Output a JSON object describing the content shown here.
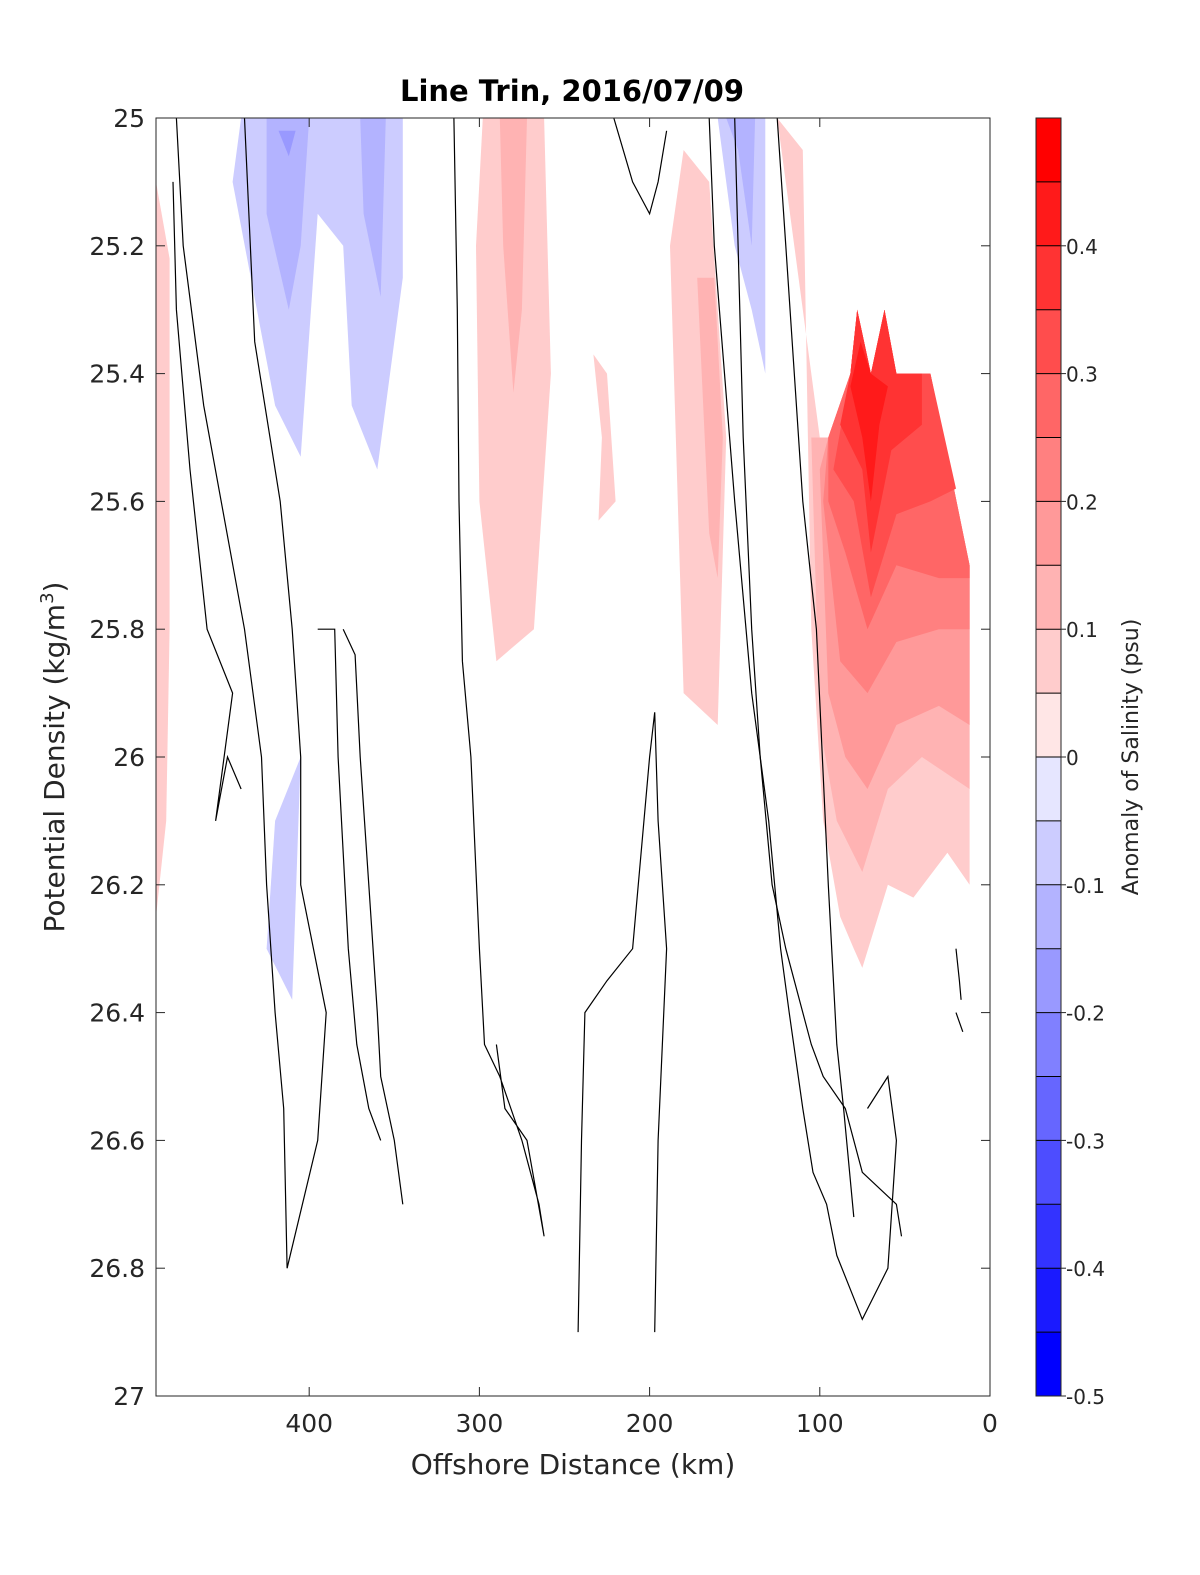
{
  "chart_data": {
    "type": "filled-contour",
    "title": "Line Trin, 2016/07/09",
    "xlabel": "Offshore Distance (km)",
    "ylabel": "Potential Density (kg/m",
    "ylabel_sup": "3",
    "ylabel_end": ")",
    "xlim": [
      490,
      0
    ],
    "ylim": [
      25,
      27
    ],
    "x_ticks": [
      400,
      300,
      200,
      100,
      0
    ],
    "y_ticks": [
      "25",
      "25.2",
      "25.4",
      "25.6",
      "25.8",
      "26",
      "26.2",
      "26.4",
      "26.6",
      "26.8",
      "27"
    ],
    "colorbar": {
      "label": "Anomaly of Salinity (psu)",
      "range": [
        -0.5,
        0.5
      ],
      "tick_labels": [
        "-0.5",
        "-0.4",
        "-0.3",
        "-0.2",
        "-0.1",
        "0",
        "0.1",
        "0.2",
        "0.3",
        "0.4"
      ],
      "levels": [
        -0.5,
        -0.45,
        -0.4,
        -0.35,
        -0.3,
        -0.25,
        -0.2,
        -0.15,
        -0.1,
        -0.05,
        0.05,
        0.1,
        0.15,
        0.2,
        0.25,
        0.3,
        0.35,
        0.4,
        0.45,
        0.5
      ],
      "colors": [
        "#0000ff",
        "#1a1aff",
        "#3333ff",
        "#4d4dff",
        "#6666ff",
        "#8080ff",
        "#9999ff",
        "#b3b3ff",
        "#ccccff",
        "#e6e6ff",
        "#ffffff",
        "#ffe6e6",
        "#ffcccc",
        "#ffb3b3",
        "#ff9999",
        "#ff8080",
        "#ff6666",
        "#ff4d4d",
        "#ff3333",
        "#ff1a1a",
        "#ff0000"
      ]
    },
    "filled_regions": [
      {
        "level": 0.1,
        "points": [
          [
            490,
            25.1
          ],
          [
            482,
            25.22
          ],
          [
            482,
            25.8
          ],
          [
            484,
            26.1
          ],
          [
            490,
            26.25
          ]
        ]
      },
      {
        "level": -0.1,
        "points": [
          [
            440,
            25.0
          ],
          [
            345,
            25.0
          ],
          [
            345,
            25.25
          ],
          [
            360,
            25.55
          ],
          [
            375,
            25.45
          ],
          [
            380,
            25.2
          ],
          [
            395,
            25.15
          ],
          [
            405,
            25.53
          ],
          [
            420,
            25.45
          ],
          [
            445,
            25.1
          ]
        ]
      },
      {
        "level": -0.15,
        "points": [
          [
            425,
            25.0
          ],
          [
            400,
            25.0
          ],
          [
            405,
            25.2
          ],
          [
            412,
            25.3
          ],
          [
            425,
            25.15
          ]
        ]
      },
      {
        "level": -0.15,
        "points": [
          [
            370,
            25.0
          ],
          [
            355,
            25.0
          ],
          [
            358,
            25.28
          ],
          [
            368,
            25.15
          ]
        ]
      },
      {
        "level": -0.2,
        "points": [
          [
            418,
            25.02
          ],
          [
            408,
            25.02
          ],
          [
            412,
            25.06
          ]
        ]
      },
      {
        "level": -0.1,
        "points": [
          [
            405,
            26.0
          ],
          [
            410,
            26.38
          ],
          [
            425,
            26.3
          ],
          [
            420,
            26.1
          ]
        ]
      },
      {
        "level": 0.1,
        "points": [
          [
            298,
            25.0
          ],
          [
            262,
            25.0
          ],
          [
            258,
            25.4
          ],
          [
            268,
            25.8
          ],
          [
            290,
            25.85
          ],
          [
            300,
            25.6
          ],
          [
            302,
            25.2
          ]
        ]
      },
      {
        "level": 0.15,
        "points": [
          [
            288,
            25.0
          ],
          [
            272,
            25.0
          ],
          [
            275,
            25.3
          ],
          [
            280,
            25.43
          ],
          [
            286,
            25.2
          ]
        ]
      },
      {
        "level": 0.1,
        "points": [
          [
            233,
            25.37
          ],
          [
            228,
            25.5
          ],
          [
            230,
            25.63
          ],
          [
            220,
            25.6
          ],
          [
            225,
            25.4
          ]
        ]
      },
      {
        "level": 0.1,
        "points": [
          [
            188,
            25.2
          ],
          [
            180,
            25.9
          ],
          [
            160,
            25.95
          ],
          [
            155,
            25.5
          ],
          [
            165,
            25.1
          ],
          [
            180,
            25.05
          ]
        ]
      },
      {
        "level": 0.15,
        "points": [
          [
            172,
            25.25
          ],
          [
            165,
            25.65
          ],
          [
            160,
            25.72
          ],
          [
            157,
            25.5
          ],
          [
            162,
            25.25
          ]
        ]
      },
      {
        "level": -0.1,
        "points": [
          [
            160,
            25.0
          ],
          [
            132,
            25.0
          ],
          [
            132,
            25.4
          ],
          [
            140,
            25.3
          ],
          [
            150,
            25.2
          ]
        ]
      },
      {
        "level": -0.15,
        "points": [
          [
            155,
            25.0
          ],
          [
            138,
            25.0
          ],
          [
            140,
            25.2
          ],
          [
            148,
            25.05
          ]
        ]
      },
      {
        "level": 0.1,
        "points": [
          [
            125,
            25.0
          ],
          [
            110,
            25.05
          ],
          [
            105,
            25.8
          ],
          [
            98,
            26.1
          ],
          [
            88,
            26.25
          ],
          [
            80,
            26.3
          ],
          [
            75,
            26.33
          ],
          [
            60,
            26.2
          ],
          [
            45,
            26.22
          ],
          [
            25,
            26.15
          ],
          [
            12,
            26.2
          ],
          [
            12,
            25.7
          ],
          [
            35,
            25.4
          ],
          [
            55,
            25.4
          ],
          [
            62,
            25.3
          ],
          [
            70,
            25.4
          ],
          [
            78,
            25.3
          ],
          [
            82,
            25.4
          ],
          [
            95,
            25.5
          ],
          [
            100,
            25.5
          ],
          [
            110,
            25.3
          ]
        ]
      },
      {
        "level": 0.15,
        "points": [
          [
            105,
            25.5
          ],
          [
            100,
            25.95
          ],
          [
            90,
            26.1
          ],
          [
            75,
            26.18
          ],
          [
            60,
            26.05
          ],
          [
            40,
            26.0
          ],
          [
            12,
            26.05
          ],
          [
            12,
            25.7
          ],
          [
            35,
            25.4
          ],
          [
            55,
            25.4
          ],
          [
            62,
            25.3
          ],
          [
            70,
            25.4
          ],
          [
            78,
            25.3
          ],
          [
            82,
            25.4
          ],
          [
            95,
            25.5
          ]
        ]
      },
      {
        "level": 0.2,
        "points": [
          [
            100,
            25.55
          ],
          [
            95,
            25.9
          ],
          [
            85,
            26.0
          ],
          [
            72,
            26.05
          ],
          [
            55,
            25.95
          ],
          [
            30,
            25.92
          ],
          [
            12,
            25.95
          ],
          [
            12,
            25.7
          ],
          [
            35,
            25.4
          ],
          [
            55,
            25.4
          ],
          [
            62,
            25.3
          ],
          [
            70,
            25.4
          ],
          [
            78,
            25.3
          ],
          [
            82,
            25.4
          ],
          [
            95,
            25.5
          ]
        ]
      },
      {
        "level": 0.25,
        "points": [
          [
            98,
            25.6
          ],
          [
            88,
            25.85
          ],
          [
            72,
            25.9
          ],
          [
            55,
            25.82
          ],
          [
            30,
            25.8
          ],
          [
            12,
            25.8
          ],
          [
            12,
            25.7
          ],
          [
            35,
            25.4
          ],
          [
            55,
            25.4
          ],
          [
            62,
            25.3
          ],
          [
            70,
            25.4
          ],
          [
            78,
            25.3
          ],
          [
            82,
            25.4
          ],
          [
            95,
            25.5
          ]
        ]
      },
      {
        "level": 0.3,
        "points": [
          [
            95,
            25.6
          ],
          [
            85,
            25.68
          ],
          [
            72,
            25.8
          ],
          [
            55,
            25.7
          ],
          [
            30,
            25.72
          ],
          [
            12,
            25.72
          ],
          [
            12,
            25.7
          ],
          [
            35,
            25.4
          ],
          [
            55,
            25.4
          ],
          [
            62,
            25.3
          ],
          [
            70,
            25.4
          ],
          [
            78,
            25.3
          ],
          [
            82,
            25.4
          ],
          [
            95,
            25.5
          ]
        ]
      },
      {
        "level": 0.35,
        "points": [
          [
            92,
            25.55
          ],
          [
            80,
            25.6
          ],
          [
            70,
            25.75
          ],
          [
            55,
            25.62
          ],
          [
            35,
            25.6
          ],
          [
            20,
            25.58
          ],
          [
            35,
            25.4
          ],
          [
            55,
            25.4
          ],
          [
            62,
            25.3
          ],
          [
            70,
            25.4
          ],
          [
            78,
            25.3
          ],
          [
            82,
            25.4
          ]
        ]
      },
      {
        "level": 0.4,
        "points": [
          [
            88,
            25.48
          ],
          [
            75,
            25.55
          ],
          [
            70,
            25.68
          ],
          [
            58,
            25.52
          ],
          [
            40,
            25.48
          ],
          [
            40,
            25.4
          ],
          [
            55,
            25.4
          ],
          [
            62,
            25.3
          ],
          [
            70,
            25.4
          ],
          [
            78,
            25.3
          ],
          [
            82,
            25.4
          ]
        ]
      },
      {
        "level": 0.45,
        "points": [
          [
            82,
            25.42
          ],
          [
            75,
            25.5
          ],
          [
            70,
            25.6
          ],
          [
            65,
            25.48
          ],
          [
            60,
            25.42
          ],
          [
            70,
            25.4
          ],
          [
            76,
            25.35
          ]
        ]
      }
    ],
    "contour_lines_zero": [
      [
        [
          478,
          25.0
        ],
        [
          474,
          25.2
        ],
        [
          462,
          25.45
        ],
        [
          438,
          25.8
        ],
        [
          428,
          26.0
        ],
        [
          425,
          26.2
        ],
        [
          420,
          26.4
        ],
        [
          415,
          26.55
        ],
        [
          413,
          26.8
        ]
      ],
      [
        [
          438,
          25.0
        ],
        [
          432,
          25.35
        ],
        [
          417,
          25.6
        ],
        [
          410,
          25.8
        ],
        [
          405,
          26.0
        ],
        [
          405,
          26.2
        ],
        [
          390,
          26.4
        ],
        [
          395,
          26.6
        ],
        [
          413,
          26.8
        ]
      ],
      [
        [
          480,
          25.1
        ],
        [
          478,
          25.3
        ],
        [
          470,
          25.55
        ],
        [
          460,
          25.8
        ],
        [
          445,
          25.9
        ],
        [
          455,
          26.1
        ],
        [
          448,
          26.0
        ],
        [
          440,
          26.05
        ]
      ],
      [
        [
          315,
          25.0
        ],
        [
          313,
          25.3
        ],
        [
          312,
          25.6
        ],
        [
          310,
          25.85
        ],
        [
          305,
          26.0
        ],
        [
          300,
          26.3
        ],
        [
          297,
          26.45
        ],
        [
          288,
          26.5
        ],
        [
          275,
          26.6
        ],
        [
          265,
          26.7
        ],
        [
          262,
          26.75
        ],
        [
          272,
          26.6
        ],
        [
          285,
          26.55
        ],
        [
          290,
          26.45
        ]
      ],
      [
        [
          380,
          25.8
        ],
        [
          373,
          25.84
        ],
        [
          370,
          26.0
        ],
        [
          365,
          26.2
        ],
        [
          360,
          26.4
        ],
        [
          358,
          26.5
        ],
        [
          350,
          26.6
        ],
        [
          345,
          26.7
        ]
      ],
      [
        [
          395,
          25.8
        ],
        [
          385,
          25.8
        ],
        [
          383,
          26.0
        ],
        [
          377,
          26.3
        ],
        [
          372,
          26.45
        ],
        [
          365,
          26.55
        ],
        [
          358,
          26.6
        ]
      ],
      [
        [
          242,
          26.9
        ],
        [
          240,
          26.6
        ],
        [
          238,
          26.4
        ],
        [
          225,
          26.35
        ],
        [
          210,
          26.3
        ],
        [
          200,
          26.0
        ],
        [
          197,
          25.93
        ],
        [
          195,
          26.1
        ],
        [
          190,
          26.3
        ],
        [
          195,
          26.6
        ],
        [
          197,
          26.9
        ]
      ],
      [
        [
          221,
          25.0
        ],
        [
          210,
          25.1
        ],
        [
          200,
          25.15
        ],
        [
          195,
          25.1
        ],
        [
          190,
          25.02
        ]
      ],
      [
        [
          165,
          25.0
        ],
        [
          162,
          25.2
        ],
        [
          150,
          25.6
        ],
        [
          140,
          25.9
        ],
        [
          130,
          26.1
        ],
        [
          123,
          26.3
        ],
        [
          118,
          26.4
        ],
        [
          110,
          26.55
        ],
        [
          104,
          26.65
        ],
        [
          96,
          26.7
        ],
        [
          90,
          26.78
        ],
        [
          75,
          26.88
        ],
        [
          60,
          26.8
        ],
        [
          55,
          26.6
        ],
        [
          60,
          26.5
        ],
        [
          72,
          26.55
        ]
      ],
      [
        [
          150,
          25.0
        ],
        [
          148,
          25.2
        ],
        [
          145,
          25.5
        ],
        [
          140,
          25.8
        ],
        [
          135,
          26.0
        ],
        [
          128,
          26.2
        ],
        [
          120,
          26.3
        ],
        [
          105,
          26.45
        ],
        [
          98,
          26.5
        ],
        [
          85,
          26.55
        ],
        [
          75,
          26.65
        ],
        [
          55,
          26.7
        ],
        [
          52,
          26.75
        ]
      ],
      [
        [
          125,
          25.0
        ],
        [
          120,
          25.2
        ],
        [
          110,
          25.6
        ],
        [
          102,
          25.8
        ],
        [
          95,
          26.2
        ],
        [
          90,
          26.45
        ],
        [
          86,
          26.55
        ],
        [
          80,
          26.72
        ]
      ],
      [
        [
          20,
          26.3
        ],
        [
          18,
          26.35
        ],
        [
          17,
          26.38
        ]
      ],
      [
        [
          20,
          26.4
        ],
        [
          16,
          26.43
        ]
      ]
    ]
  }
}
